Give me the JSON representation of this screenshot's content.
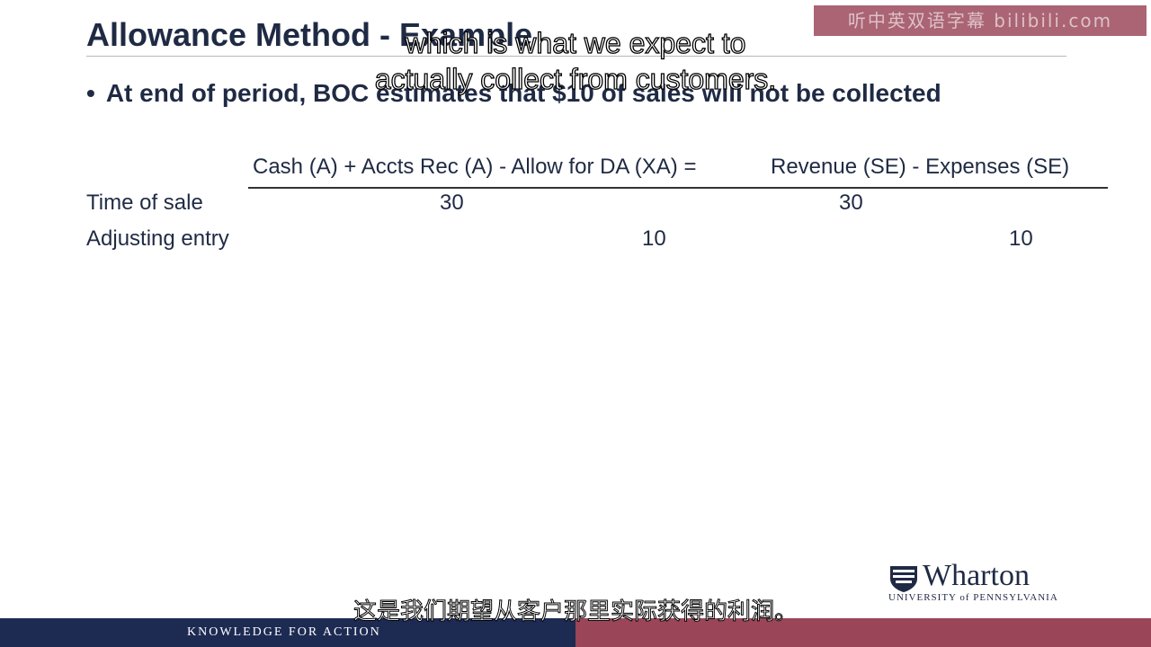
{
  "slide": {
    "title": "Allowance Method - Example",
    "watermark": "听中英双语字幕 bilibili.com",
    "bullet": "At end of period, BOC estimates that $10 of sales will not be collected"
  },
  "equation": {
    "left_header": "Cash (A) + Accts Rec (A) - Allow for DA (XA) =",
    "right_header": "Revenue (SE) - Expenses (SE)"
  },
  "table": {
    "rows": [
      {
        "label": "Time of sale",
        "accts_rec": "30",
        "revenue": "30"
      },
      {
        "label": "Adjusting entry",
        "allow_da": "10",
        "expenses": "10"
      }
    ]
  },
  "subtitles": {
    "en_line1": "which is what we expect to",
    "en_line2": "actually collect from customers.",
    "zh": "这是我们期望从客户那里实际获得的利润。"
  },
  "logo": {
    "name": "Wharton",
    "university": "UNIVERSITY of PENNSYLVANIA"
  },
  "footer": {
    "tagline": "KNOWLEDGE FOR ACTION"
  },
  "colors": {
    "navy": "#1d2a52",
    "maroon": "#9b4558",
    "text": "#1f2a44"
  }
}
